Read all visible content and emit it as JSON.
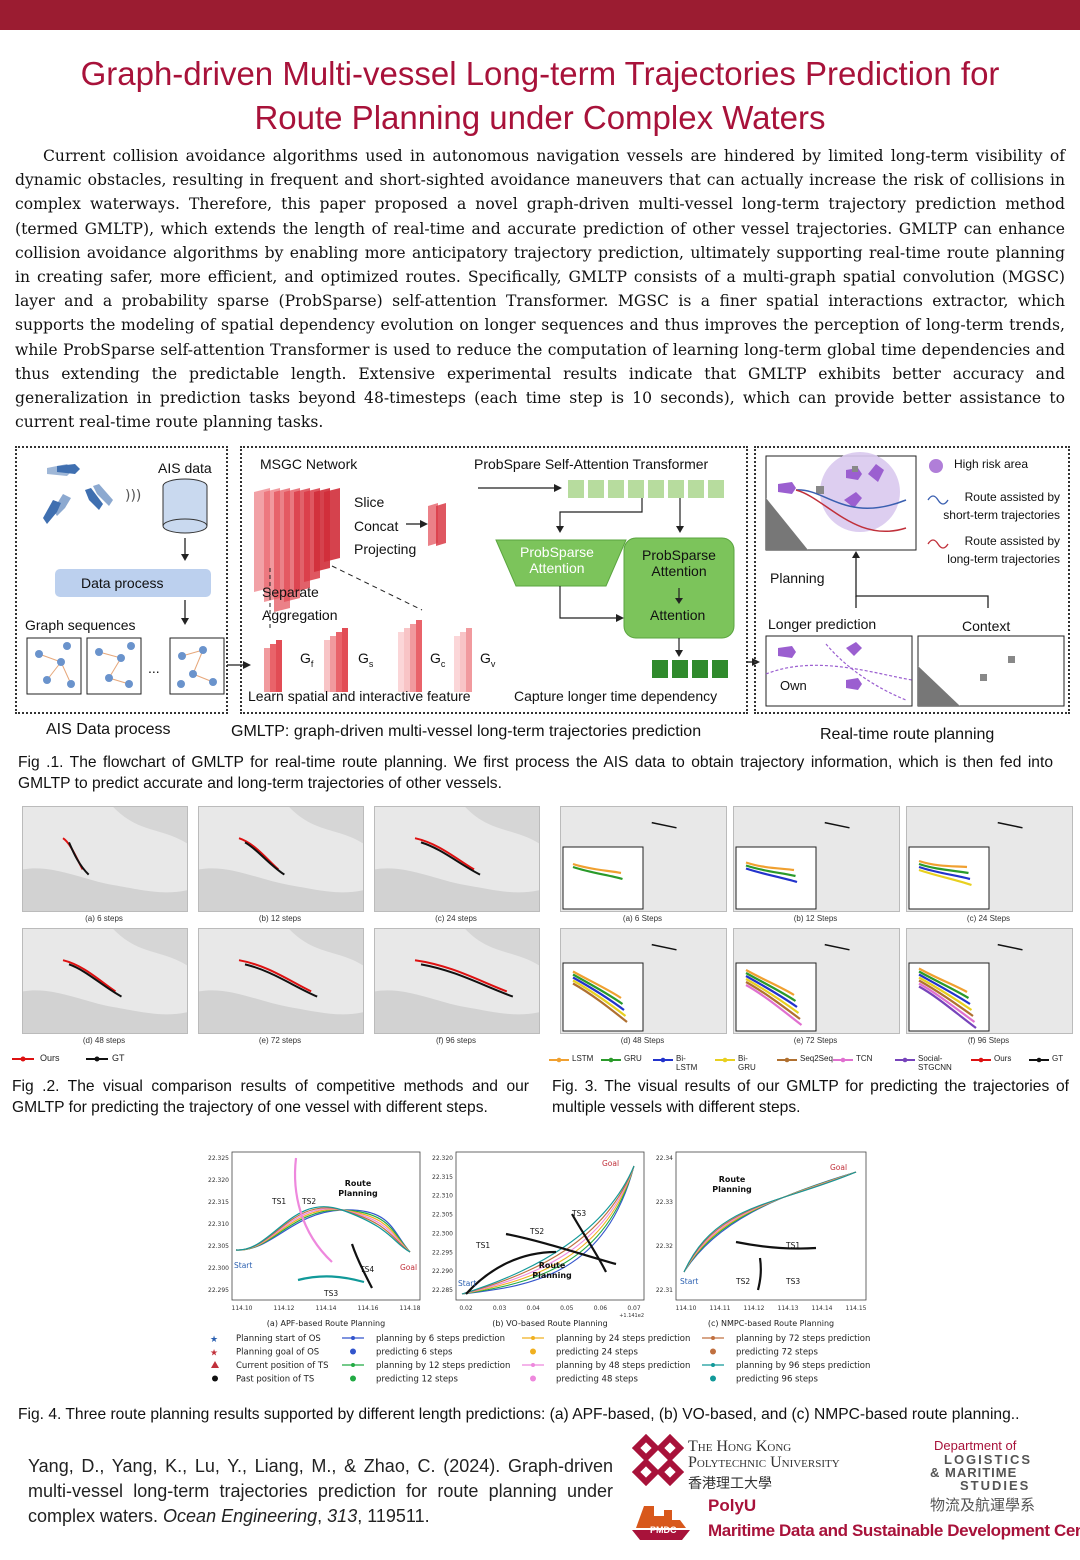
{
  "title_line1": "Graph-driven Multi-vessel Long-term Trajectories Prediction for",
  "title_line2": "Route Planning under Complex Waters",
  "abstract": "Current collision avoidance algorithms used in autonomous navigation vessels are hindered by limited long-term visibility of dynamic obstacles, resulting in frequent and short-sighted avoidance maneuvers that can actually increase the risk of collisions in complex waterways. Therefore, this paper proposed a novel graph-driven multi-vessel long-term trajectory prediction method (termed GMLTP), which extends the length of real-time and accurate prediction of other vessel trajectories. GMLTP can enhance collision avoidance algorithms by enabling more anticipatory trajectory prediction, ultimately supporting real-time route planning in creating safer, more efficient, and optimized routes. Specifically, GMLTP consists of a multi-graph spatial convolution (MGSC) layer and a probability sparse (ProbSparse) self-attention Transformer. MGSC is a finer spatial interactions extractor, which supports the modeling of spatial dependency evolution on longer sequences and thus improves the perception of long-term trends, while ProbSparse self-attention Transformer is used to reduce the computation of learning long-term global time dependencies and thus extending the predictable length. Extensive experimental results indicate that GMLTP exhibits better accuracy and generalization in prediction tasks beyond 48-timesteps (each time step is 10 seconds), which can provide better assistance to current real-time route planning tasks.",
  "fig1": {
    "ais_data": "AIS data",
    "data_process": "Data process",
    "graph_sequences": "Graph sequences",
    "ellipsis": "...",
    "ais_data_process": "AIS Data process",
    "msgc_network": "MSGC Network",
    "slice": "Slice",
    "concat": "Concat",
    "projecting": "Projecting",
    "separate": "Separate",
    "aggregation": "Aggregation",
    "gf": "G",
    "gf_sub": "f",
    "gs": "G",
    "gs_sub": "s",
    "gc": "G",
    "gc_sub": "c",
    "gv": "G",
    "gv_sub": "v",
    "learn_spatial": "Learn spatial and interactive feature",
    "probspare_transformer": "ProbSpare Self-Attention Transformer",
    "probsparse_attention_1a": "ProbSparse",
    "probsparse_attention_1b": "Attention",
    "probsparse_attention_2a": "ProbSparse",
    "probsparse_attention_2b": "Attention",
    "attention": "Attention",
    "capture_longer": "Capture longer time dependency",
    "gmltp_label": "GMLTP: graph-driven multi-vessel long-term trajectories prediction",
    "high_risk_area": "High risk area",
    "route_short_a": "Route assisted by",
    "route_short_b": "short-term trajectories",
    "route_long_a": "Route assisted by",
    "route_long_b": "long-term trajectories",
    "planning": "Planning",
    "longer_prediction": "Longer prediction",
    "context": "Context",
    "own": "Own",
    "realtime_route_planning": "Real-time route planning"
  },
  "fig1_caption": "Fig .1. The flowchart of GMLTP for real-time route planning. We first process the AIS data to obtain trajectory information, which is then fed into GMLTP to predict accurate and long-term trajectories of other vessels.",
  "fig2": {
    "subplots": [
      "(a) 6 steps",
      "(b) 12 steps",
      "(c) 24 steps",
      "(d) 48 steps",
      "(e) 72 steps",
      "(f) 96 steps"
    ],
    "legend_ours": "Ours",
    "legend_gt": "GT"
  },
  "fig2_caption": "Fig .2. The visual comparison results of competitive methods and our GMLTP for predicting the trajectory of one vessel with different steps.",
  "fig3": {
    "subplots": [
      "(a) 6 Steps",
      "(b) 12 Steps",
      "(c) 24 Steps",
      "(d) 48 Steps",
      "(e) 72 Steps",
      "(f) 96 Steps"
    ],
    "legend": [
      {
        "label": "LSTM",
        "color": "#f0a030"
      },
      {
        "label": "GRU",
        "color": "#2a9a2a"
      },
      {
        "label": "Bi-LSTM",
        "color": "#2233cc"
      },
      {
        "label": "Bi-GRU",
        "color": "#e8d020"
      },
      {
        "label": "Seq2Seq",
        "color": "#b07030"
      },
      {
        "label": "TCN",
        "color": "#e070d0"
      },
      {
        "label": "Social-STGCNN",
        "color": "#7744bb"
      },
      {
        "label": "Ours",
        "color": "#dd1111"
      },
      {
        "label": "GT",
        "color": "#111111"
      }
    ]
  },
  "fig3_caption": "Fig. 3. The visual results of our GMLTP for predicting the trajectories of multiple vessels with different steps.",
  "fig4": {
    "a": {
      "title": "(a) APF-based Route Planning",
      "route_planning_a": "Route",
      "route_planning_b": "Planning",
      "start": "Start",
      "goal": "Goal",
      "ts1": "TS1",
      "ts2": "TS2",
      "ts3": "TS3",
      "ts4": "TS4",
      "yticks": [
        "22.325",
        "22.320",
        "22.315",
        "22.310",
        "22.305",
        "22.300",
        "22.295"
      ],
      "xticks": [
        "114.10",
        "114.12",
        "114.14",
        "114.16",
        "114.18"
      ]
    },
    "b": {
      "title": "(b) VO-based Route Planning",
      "route_planning_a": "Route",
      "route_planning_b": "Planning",
      "start": "Start",
      "goal": "Goal",
      "ts1": "TS1",
      "ts2": "TS2",
      "ts3": "TS3",
      "yticks": [
        "22.320",
        "22.315",
        "22.310",
        "22.305",
        "22.300",
        "22.295",
        "22.290",
        "22.285"
      ],
      "xticks": [
        "0.02",
        "0.03",
        "0.04",
        "0.05",
        "0.06",
        "0.07"
      ],
      "offset": "+1.141e2"
    },
    "c": {
      "title": "(c) NMPC-based Route Planning",
      "route_planning_a": "Route",
      "route_planning_b": "Planning",
      "start": "Start",
      "goal": "Goal",
      "ts1": "TS1",
      "ts2": "TS2",
      "ts3": "TS3",
      "yticks": [
        "22.34",
        "22.33",
        "22.32",
        "22.31"
      ],
      "xticks": [
        "114.10",
        "114.11",
        "114.12",
        "114.13",
        "114.14",
        "114.15"
      ]
    },
    "legend_col1": [
      "Planning start of OS",
      "Planning goal of OS",
      "Current position of TS",
      "Past position of TS"
    ],
    "legend_col2": [
      "planning by 6 steps prediction",
      "predicting 6 steps",
      "planning by 12 steps prediction",
      "predicting 12 steps"
    ],
    "legend_col3": [
      "planning by 24 steps prediction",
      "predicting 24 steps",
      "planning by 48 steps prediction",
      "predicting 48 steps"
    ],
    "legend_col4": [
      "planning by 72 steps prediction",
      "predicting 72 steps",
      "planning by 96 steps prediction",
      "predicting 96 steps"
    ],
    "colors": {
      "s6": "#3355cc",
      "s12": "#22aa44",
      "s24": "#f0b020",
      "s48": "#ee88dd",
      "s72": "#c07040",
      "s96": "#119999"
    }
  },
  "fig4_caption": "Fig. 4. Three route planning results supported by different length predictions: (a) APF-based, (b) VO-based, and (c) NMPC-based route planning..",
  "reference": {
    "text_before": "Yang, D., Yang, K., Lu, Y., Liang, M., & Zhao, C. (2024). Graph-driven multi-vessel long-term trajectories prediction for route planning under complex waters. ",
    "journal": "Ocean Engineering",
    "sep": ", ",
    "volume": "313",
    "text_after": ", 119511."
  },
  "logos": {
    "polyu_line1": "The Hong Kong",
    "polyu_line2": "Polytechnic University",
    "polyu_chinese": "香港理工大學",
    "dept_line1": "Department of",
    "dept_line2": "LOGISTICS",
    "dept_line3": "& MARITIME",
    "dept_line4": "STUDIES",
    "dept_chinese": "物流及航運學系",
    "pmdc_badge": "PMDC",
    "polyu_short": "PolyU",
    "centre": "Maritime Data and Sustainable Development Centre"
  }
}
